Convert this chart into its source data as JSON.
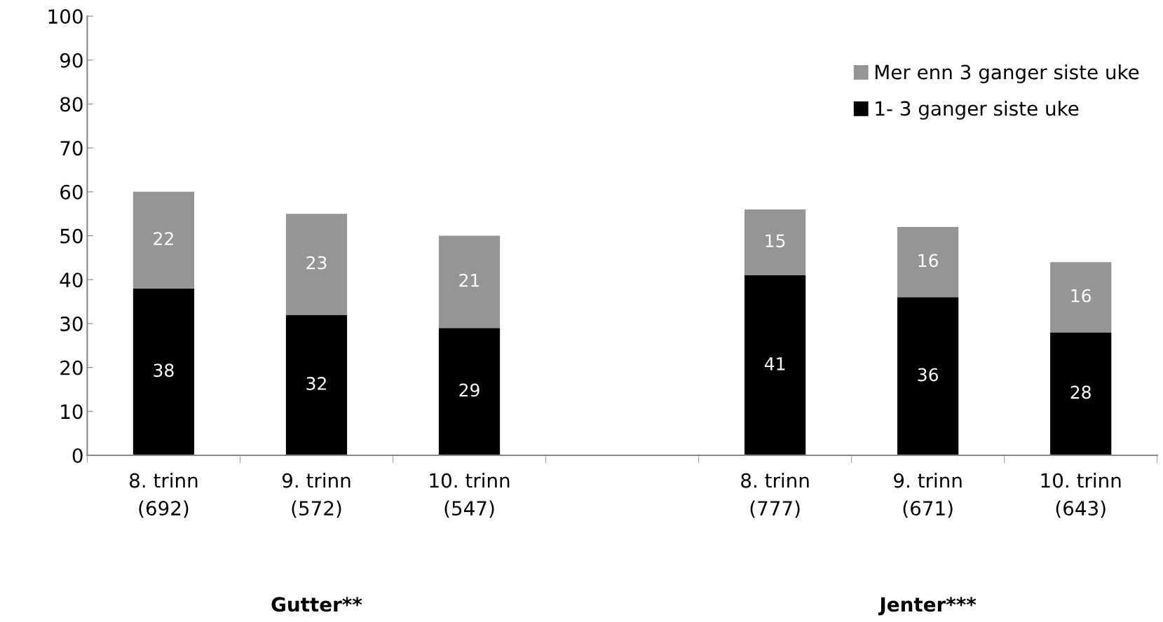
{
  "chart_data": {
    "type": "bar",
    "stacked": true,
    "categories": [
      "8. trinn\n(692)",
      "9. trinn\n(572)",
      "10. trinn\n(547)",
      null,
      "8. trinn\n(777)",
      "9. trinn\n(671)",
      "10. trinn\n(643)"
    ],
    "series": [
      {
        "name": "1- 3 ganger siste uke",
        "color": "#000000",
        "values": [
          38,
          32,
          29,
          null,
          41,
          36,
          28
        ]
      },
      {
        "name": "Mer enn 3 ganger siste uke",
        "color": "#959595",
        "values": [
          22,
          23,
          21,
          null,
          15,
          16,
          16
        ]
      }
    ],
    "ylim": [
      0,
      100
    ],
    "yticks": [
      0,
      10,
      20,
      30,
      40,
      50,
      60,
      70,
      80,
      90,
      100
    ],
    "grid": false,
    "legend": "top right",
    "data_labels": true,
    "annotations": [
      "Gutter**",
      "Jenter***"
    ]
  }
}
